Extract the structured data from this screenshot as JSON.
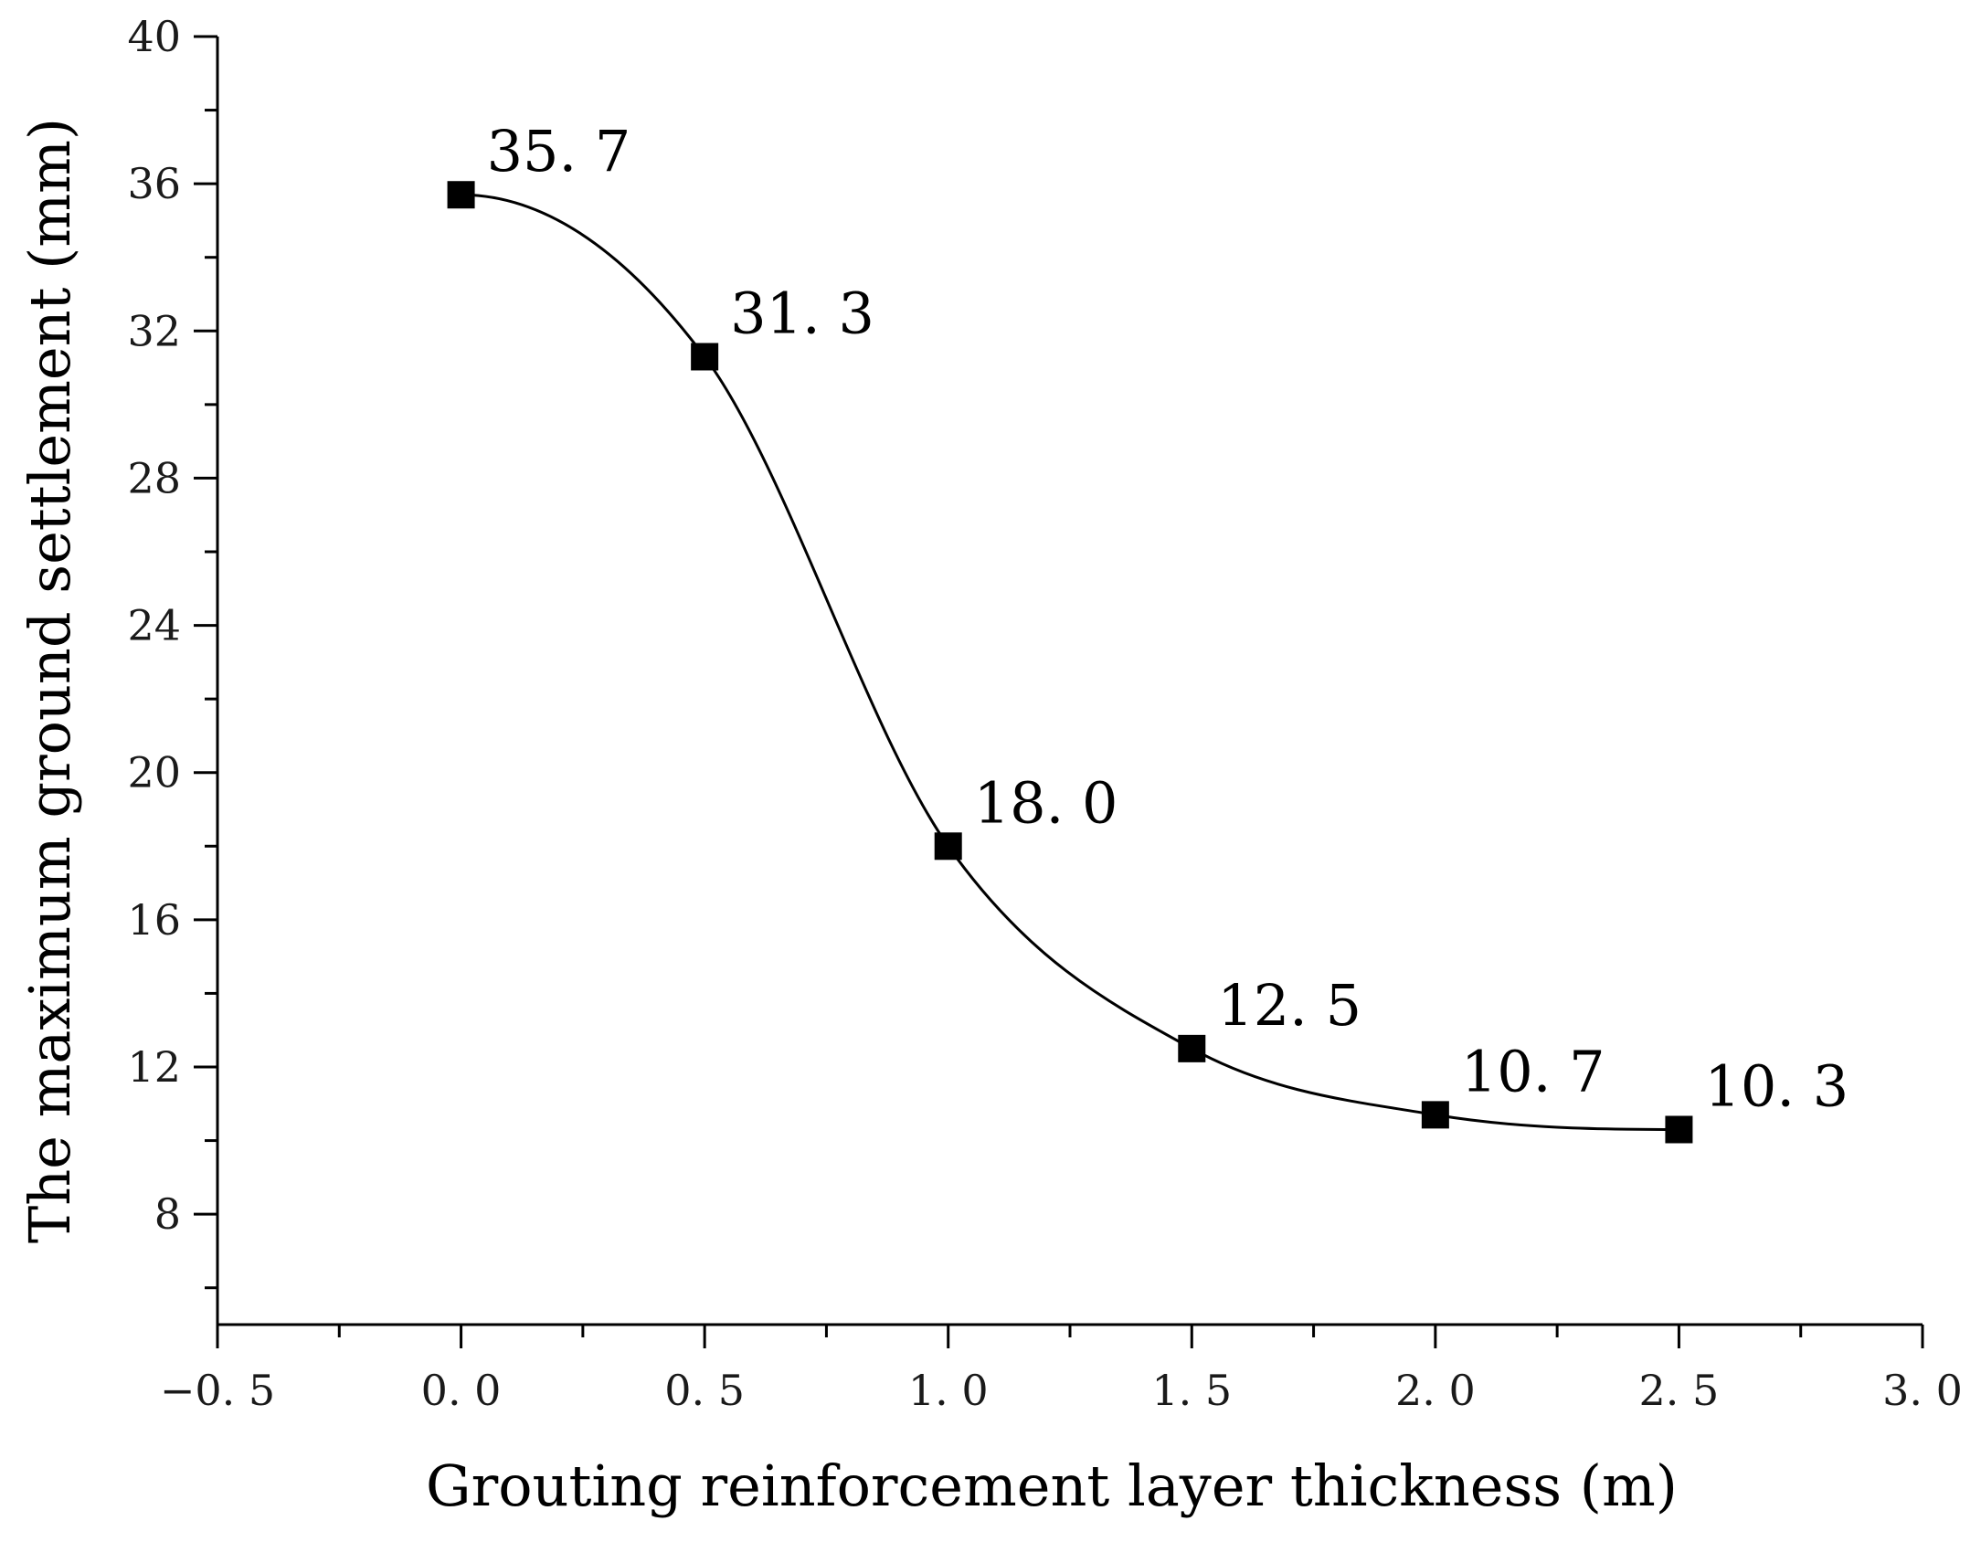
{
  "chart_data": {
    "type": "line",
    "title": "",
    "xlabel": "Grouting reinforcement layer thickness (m)",
    "ylabel": "The maximum ground settlement (mm)",
    "xlim": [
      -0.5,
      3.0
    ],
    "ylim": [
      5,
      40
    ],
    "x_ticks": [
      -0.5,
      0.0,
      0.5,
      1.0,
      1.5,
      2.0,
      2.5,
      3.0
    ],
    "x_tick_labels": [
      "−0. 5",
      "0. 0",
      "0. 5",
      "1. 0",
      "1. 5",
      "2. 0",
      "2. 5",
      "3. 0"
    ],
    "y_ticks": [
      8,
      12,
      16,
      20,
      24,
      28,
      32,
      36,
      40
    ],
    "y_tick_labels": [
      "8",
      "12",
      "16",
      "20",
      "24",
      "28",
      "32",
      "36",
      "40"
    ],
    "grid": false,
    "series": [
      {
        "name": "Maximum ground settlement",
        "x": [
          0.0,
          0.5,
          1.0,
          1.5,
          2.0,
          2.5
        ],
        "values": [
          35.7,
          31.3,
          18.0,
          12.5,
          10.7,
          10.3
        ],
        "labels": [
          "35. 7",
          "31. 3",
          "18. 0",
          "12. 5",
          "10. 7",
          "10. 3"
        ],
        "marker": "square",
        "color": "#000000"
      }
    ]
  }
}
